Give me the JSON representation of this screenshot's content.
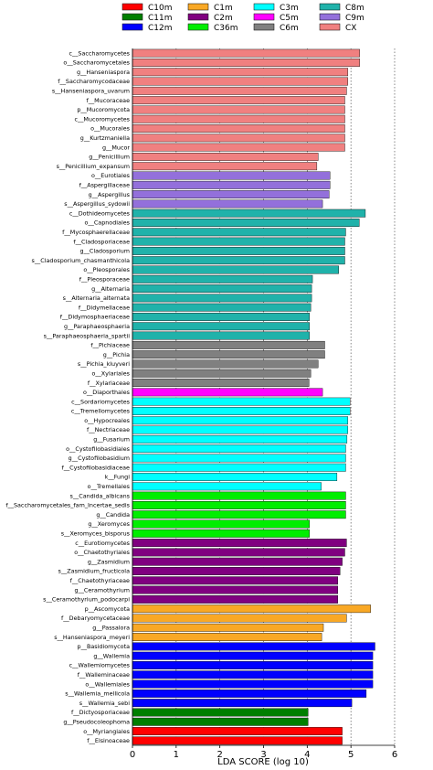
{
  "chart_data": {
    "type": "bar",
    "orientation": "horizontal",
    "xlabel": "LDA SCORE (log 10)",
    "xlim": [
      0,
      6
    ],
    "xticks": [
      0,
      1,
      2,
      3,
      4,
      5,
      6
    ],
    "grid": "vertical-dashed",
    "legend_position": "top",
    "groups": [
      {
        "name": "C10m",
        "color": "#ff0000"
      },
      {
        "name": "C11m",
        "color": "#007f00"
      },
      {
        "name": "C12m",
        "color": "#0000ff"
      },
      {
        "name": "C1m",
        "color": "#f9a825"
      },
      {
        "name": "C2m",
        "color": "#800080"
      },
      {
        "name": "C36m",
        "color": "#00ee00"
      },
      {
        "name": "C3m",
        "color": "#00ffff"
      },
      {
        "name": "C5m",
        "color": "#ff00ff"
      },
      {
        "name": "C6m",
        "color": "#808080"
      },
      {
        "name": "C8m",
        "color": "#20b2aa"
      },
      {
        "name": "C9m",
        "color": "#9370db"
      },
      {
        "name": "CX",
        "color": "#f08080"
      }
    ],
    "bars": [
      {
        "label": "c__Saccharomycetes",
        "value": 5.2,
        "group": "CX"
      },
      {
        "label": "o__Saccharomycetales",
        "value": 5.2,
        "group": "CX"
      },
      {
        "label": "g__Hanseniaspora",
        "value": 4.93,
        "group": "CX"
      },
      {
        "label": "f__Saccharomycodaceae",
        "value": 4.93,
        "group": "CX"
      },
      {
        "label": "s__Hanseniaspora_uvarum",
        "value": 4.9,
        "group": "CX"
      },
      {
        "label": "f__Mucoraceae",
        "value": 4.86,
        "group": "CX"
      },
      {
        "label": "p__Mucoromycota",
        "value": 4.86,
        "group": "CX"
      },
      {
        "label": "c__Mucoromycetes",
        "value": 4.86,
        "group": "CX"
      },
      {
        "label": "o__Mucorales",
        "value": 4.86,
        "group": "CX"
      },
      {
        "label": "g__Kurtzmaniella",
        "value": 4.86,
        "group": "CX"
      },
      {
        "label": "g__Mucor",
        "value": 4.86,
        "group": "CX"
      },
      {
        "label": "g__Penicillium",
        "value": 4.25,
        "group": "CX"
      },
      {
        "label": "s__Penicillium_expansum",
        "value": 4.22,
        "group": "CX"
      },
      {
        "label": "o__Eurotiales",
        "value": 4.52,
        "group": "C9m"
      },
      {
        "label": "f__Aspergillaceae",
        "value": 4.52,
        "group": "C9m"
      },
      {
        "label": "g__Aspergillus",
        "value": 4.5,
        "group": "C9m"
      },
      {
        "label": "s__Aspergillus_sydowii",
        "value": 4.35,
        "group": "C9m"
      },
      {
        "label": "c__Dothideomycetes",
        "value": 5.33,
        "group": "C8m"
      },
      {
        "label": "o__Capnodiales",
        "value": 5.19,
        "group": "C8m"
      },
      {
        "label": "f__Mycosphaerellaceae",
        "value": 4.88,
        "group": "C8m"
      },
      {
        "label": "f__Cladosporiaceae",
        "value": 4.86,
        "group": "C8m"
      },
      {
        "label": "g__Cladosporium",
        "value": 4.86,
        "group": "C8m"
      },
      {
        "label": "s__Cladosporium_chasmanthicola",
        "value": 4.86,
        "group": "C8m"
      },
      {
        "label": "o__Pleosporales",
        "value": 4.72,
        "group": "C8m"
      },
      {
        "label": "f__Pleosporaceae",
        "value": 4.12,
        "group": "C8m"
      },
      {
        "label": "g__Alternaria",
        "value": 4.1,
        "group": "C8m"
      },
      {
        "label": "s__Alternaria_alternata",
        "value": 4.1,
        "group": "C8m"
      },
      {
        "label": "f__Didymellaceae",
        "value": 4.08,
        "group": "C8m"
      },
      {
        "label": "f__Didymosphaeriaceae",
        "value": 4.05,
        "group": "C8m"
      },
      {
        "label": "g__Paraphaeosphaeria",
        "value": 4.05,
        "group": "C8m"
      },
      {
        "label": "s__Paraphaeosphaeria_spartii",
        "value": 4.05,
        "group": "C8m"
      },
      {
        "label": "f__Pichiaceae",
        "value": 4.4,
        "group": "C6m"
      },
      {
        "label": "g__Pichia",
        "value": 4.4,
        "group": "C6m"
      },
      {
        "label": "s__Pichia_kluyveri",
        "value": 4.25,
        "group": "C6m"
      },
      {
        "label": "o__Xylariales",
        "value": 4.08,
        "group": "C6m"
      },
      {
        "label": "f__Xylariaceae",
        "value": 4.04,
        "group": "C6m"
      },
      {
        "label": "o__Diaporthales",
        "value": 4.35,
        "group": "C5m"
      },
      {
        "label": "c__Sordariomycetes",
        "value": 4.98,
        "group": "C3m"
      },
      {
        "label": "c__Tremellomycetes",
        "value": 4.98,
        "group": "C3m"
      },
      {
        "label": "o__Hypocreales",
        "value": 4.93,
        "group": "C3m"
      },
      {
        "label": "f__Nectriaceae",
        "value": 4.93,
        "group": "C3m"
      },
      {
        "label": "g__Fusarium",
        "value": 4.91,
        "group": "C3m"
      },
      {
        "label": "o__Cystofilobasidiales",
        "value": 4.88,
        "group": "C3m"
      },
      {
        "label": "g__Cystofilobasidium",
        "value": 4.88,
        "group": "C3m"
      },
      {
        "label": "f__Cystofilobasidiaceae",
        "value": 4.88,
        "group": "C3m"
      },
      {
        "label": "k__Fungi",
        "value": 4.68,
        "group": "C3m"
      },
      {
        "label": "o__Tremellales",
        "value": 4.32,
        "group": "C3m"
      },
      {
        "label": "s__Candida_albicans",
        "value": 4.88,
        "group": "C36m"
      },
      {
        "label": "f__Saccharomycetales_fam_Incertae_sedis",
        "value": 4.88,
        "group": "C36m"
      },
      {
        "label": "g__Candida",
        "value": 4.88,
        "group": "C36m"
      },
      {
        "label": "g__Xeromyces",
        "value": 4.05,
        "group": "C36m"
      },
      {
        "label": "s__Xeromyces_bisporus",
        "value": 4.05,
        "group": "C36m"
      },
      {
        "label": "c__Eurotiomycetes",
        "value": 4.9,
        "group": "C2m"
      },
      {
        "label": "o__Chaetothyriales",
        "value": 4.86,
        "group": "C2m"
      },
      {
        "label": "g__Zasmidium",
        "value": 4.8,
        "group": "C2m"
      },
      {
        "label": "s__Zasmidium_fructicola",
        "value": 4.75,
        "group": "C2m"
      },
      {
        "label": "f__Chaetothyriaceae",
        "value": 4.7,
        "group": "C2m"
      },
      {
        "label": "g__Ceramothyrium",
        "value": 4.7,
        "group": "C2m"
      },
      {
        "label": "s__Ceramothyrium_podocarpi",
        "value": 4.7,
        "group": "C2m"
      },
      {
        "label": "p__Ascomycota",
        "value": 5.45,
        "group": "C1m"
      },
      {
        "label": "f__Debaryomycetaceae",
        "value": 4.9,
        "group": "C1m"
      },
      {
        "label": "g__Passalora",
        "value": 4.37,
        "group": "C1m"
      },
      {
        "label": "s__Hanseniaspora_meyeri",
        "value": 4.33,
        "group": "C1m"
      },
      {
        "label": "p__Basidiomycota",
        "value": 5.55,
        "group": "C12m"
      },
      {
        "label": "g__Wallemia",
        "value": 5.5,
        "group": "C12m"
      },
      {
        "label": "c__Wallemiomycetes",
        "value": 5.5,
        "group": "C12m"
      },
      {
        "label": "f__Walleminaceae",
        "value": 5.5,
        "group": "C12m"
      },
      {
        "label": "o__Wallemiales",
        "value": 5.5,
        "group": "C12m"
      },
      {
        "label": "s__Wallemia_mellicola",
        "value": 5.35,
        "group": "C12m"
      },
      {
        "label": "s__Wallemia_sebi",
        "value": 5.02,
        "group": "C12m"
      },
      {
        "label": "f__Dictyosporiaceae",
        "value": 4.02,
        "group": "C11m"
      },
      {
        "label": "g__Pseudocoleophoma",
        "value": 4.02,
        "group": "C11m"
      },
      {
        "label": "o__Myriangiales",
        "value": 4.8,
        "group": "C10m"
      },
      {
        "label": "f__Elsinoaceae",
        "value": 4.8,
        "group": "C10m"
      }
    ]
  }
}
